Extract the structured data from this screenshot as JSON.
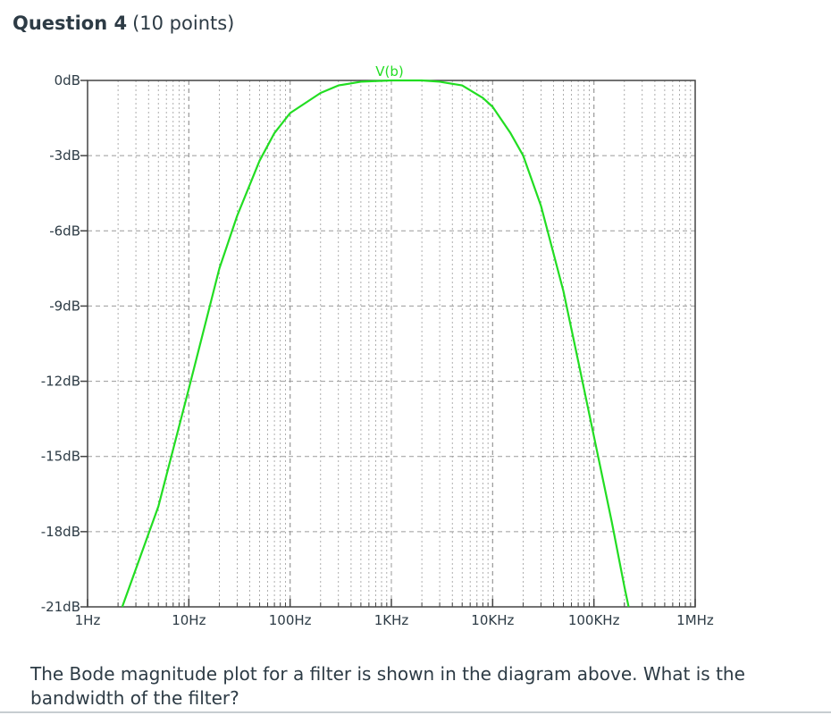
{
  "question": {
    "title": "Question 4",
    "points": "(10 points)",
    "text": "The Bode magnitude plot for a filter is shown in the diagram above. What is the bandwidth of the filter?"
  },
  "colors": {
    "trace": "#22dd22",
    "axis": "#444444",
    "grid": "#9a9a9a",
    "text": "#2d3b45"
  },
  "chart_data": {
    "type": "line",
    "title": "",
    "xlabel": "",
    "ylabel": "",
    "x_scale": "log",
    "xlim": [
      1,
      1000000
    ],
    "ylim": [
      -21,
      0
    ],
    "x_ticks": [
      1,
      10,
      100,
      1000,
      10000,
      100000,
      1000000
    ],
    "x_tick_labels": [
      "1Hz",
      "10Hz",
      "100Hz",
      "1KHz",
      "10KHz",
      "100KHz",
      "1MHz"
    ],
    "y_ticks": [
      0,
      -3,
      -6,
      -9,
      -12,
      -15,
      -18,
      -21
    ],
    "y_tick_labels": [
      "0dB",
      "-3dB",
      "-6dB",
      "-9dB",
      "-12dB",
      "-15dB",
      "-18dB",
      "-21dB"
    ],
    "grid": true,
    "series": [
      {
        "name": "V(b)",
        "x": [
          2.2,
          5,
          10,
          20,
          30,
          50,
          70,
          100,
          200,
          300,
          500,
          1000,
          2000,
          3000,
          5000,
          8000,
          10000,
          15000,
          20000,
          30000,
          50000,
          70000,
          100000,
          150000,
          200000,
          220000
        ],
        "y": [
          -21,
          -17,
          -12.3,
          -7.5,
          -5.4,
          -3.2,
          -2.1,
          -1.3,
          -0.5,
          -0.2,
          -0.05,
          0,
          0,
          -0.05,
          -0.2,
          -0.7,
          -1.05,
          -2.1,
          -3.0,
          -5.0,
          -8.4,
          -11.2,
          -14.2,
          -17.6,
          -20.2,
          -21
        ]
      }
    ]
  }
}
